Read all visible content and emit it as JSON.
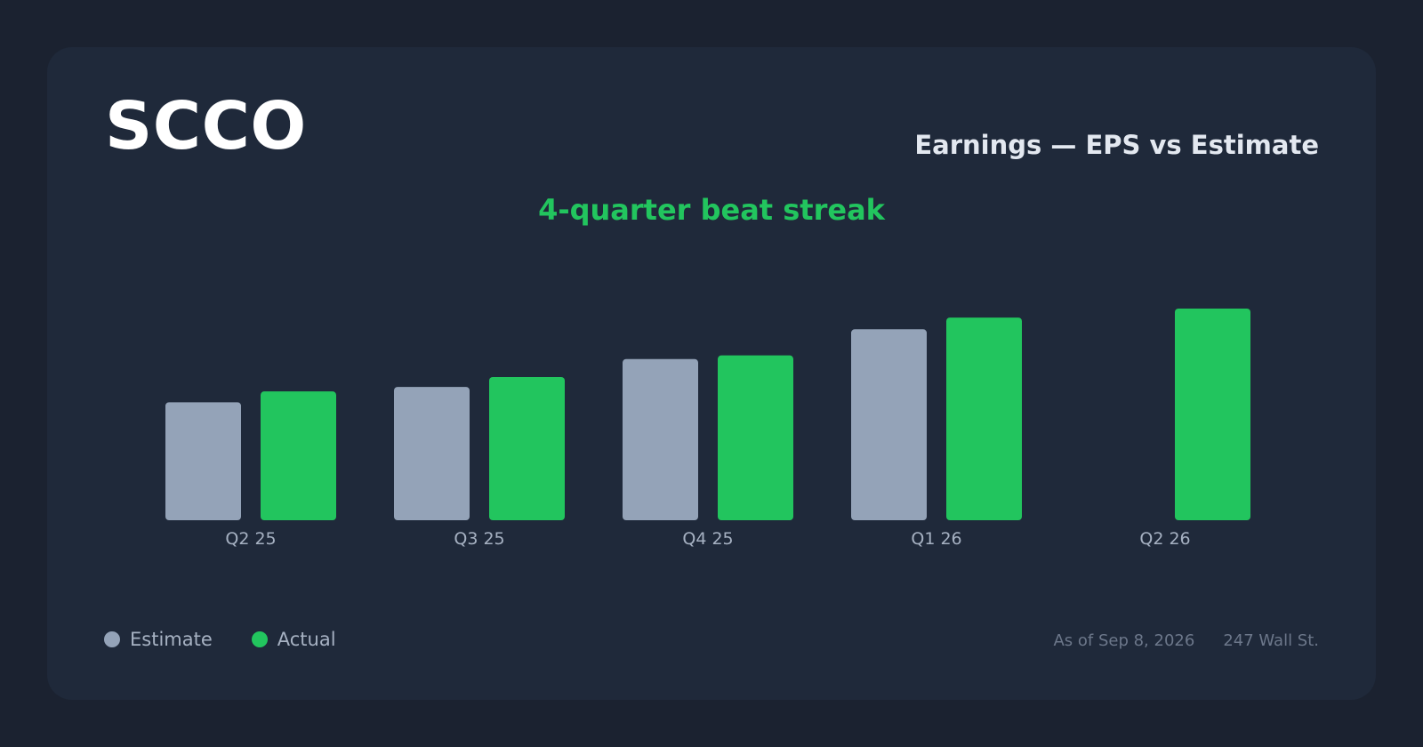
{
  "header": {
    "ticker": "SCCO",
    "title": "Earnings — EPS vs Estimate",
    "streak": "4-quarter beat streak"
  },
  "footer": {
    "as_of": "As of Sep 8, 2026",
    "source": "247 Wall St."
  },
  "colors": {
    "estimate": "#94a3b8",
    "actual": "#22c55e",
    "streak": "#22c55e",
    "axis_label": "#a6b1c2"
  },
  "chart_data": {
    "type": "bar",
    "title": "Earnings — EPS vs Estimate",
    "categories": [
      "Q2 25",
      "Q3 25",
      "Q4 25",
      "Q1 26",
      "Q2 26"
    ],
    "series": [
      {
        "name": "Estimate",
        "values": [
          1.31,
          1.48,
          1.79,
          2.12,
          null
        ]
      },
      {
        "name": "Actual",
        "values": [
          1.43,
          1.59,
          1.83,
          2.25,
          2.35
        ]
      }
    ],
    "ylim": [
      0,
      2.35
    ],
    "grid": false,
    "legend": "bottom-left",
    "xlabel": "",
    "ylabel": ""
  }
}
